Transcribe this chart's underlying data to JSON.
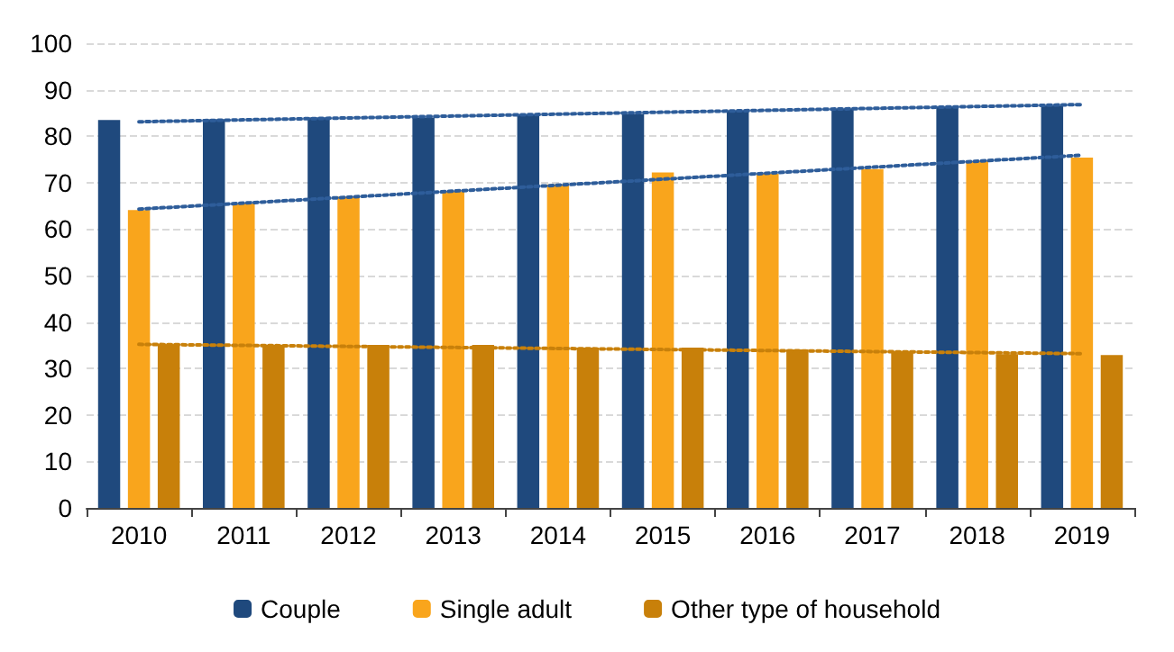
{
  "chart_data": {
    "type": "bar",
    "categories": [
      "2010",
      "2011",
      "2012",
      "2013",
      "2014",
      "2015",
      "2016",
      "2017",
      "2018",
      "2019"
    ],
    "series": [
      {
        "name": "Couple",
        "color": "#1f497d",
        "values": [
          83.5,
          83.6,
          84.0,
          84.0,
          84.7,
          84.8,
          85.5,
          85.9,
          86.4,
          86.6
        ]
      },
      {
        "name": "Single adult",
        "color": "#f9a51c",
        "values": [
          64.1,
          65.5,
          67.0,
          68.1,
          69.6,
          72.2,
          71.9,
          72.9,
          74.6,
          75.4
        ]
      },
      {
        "name": "Other type of household",
        "color": "#c8800a",
        "values": [
          35.2,
          35.1,
          35.1,
          35.1,
          34.5,
          34.5,
          34.1,
          33.7,
          33.1,
          32.9
        ]
      },
      {
        "type": "line",
        "color": "#2e5d9a",
        "line_style": "dotted",
        "values": [
          83.1,
          null,
          null,
          null,
          null,
          null,
          null,
          null,
          null,
          86.8
        ]
      },
      {
        "type": "line",
        "color": "#2e5d9a",
        "line_style": "dotted",
        "values": [
          64.3,
          null,
          null,
          null,
          null,
          null,
          null,
          null,
          null,
          75.9
        ]
      },
      {
        "type": "line",
        "color": "#c8800a",
        "line_style": "dotted",
        "values": [
          35.2,
          null,
          null,
          null,
          null,
          null,
          null,
          null,
          null,
          33.2
        ]
      }
    ],
    "ylim": [
      0,
      100
    ],
    "yticks": [
      0,
      10,
      20,
      30,
      40,
      50,
      60,
      70,
      80,
      90,
      100
    ],
    "grid": "y",
    "legend": "bottom"
  }
}
